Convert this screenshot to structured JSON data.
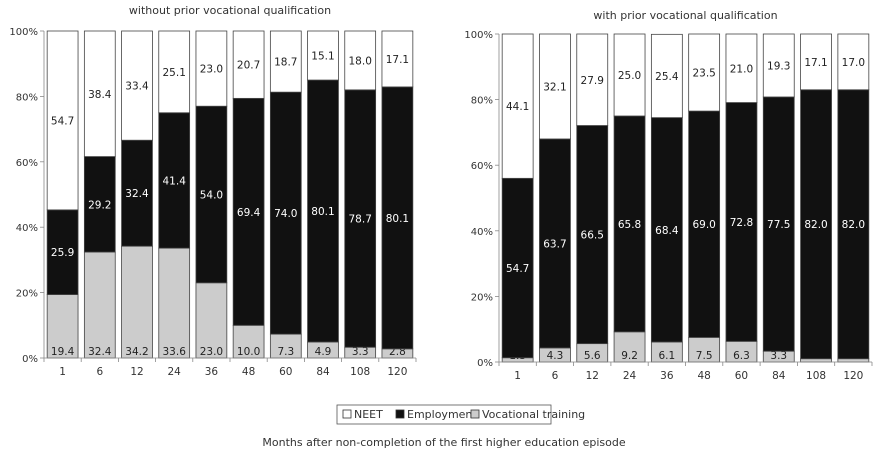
{
  "figure": {
    "xlabel": "Months after non-completion of the first higher education episode"
  },
  "legend": {
    "position": "bottom-center",
    "items": [
      {
        "name": "NEET",
        "color": "#ffffff"
      },
      {
        "name": "Employment",
        "color": "#111111"
      },
      {
        "name": "Vocational training",
        "color": "#cccccc"
      }
    ]
  },
  "chart_data": [
    {
      "type": "bar",
      "stacked": true,
      "title": "without prior vocational qualification",
      "categories": [
        "1",
        "6",
        "12",
        "24",
        "36",
        "48",
        "60",
        "84",
        "108",
        "120"
      ],
      "ylim": [
        0,
        100
      ],
      "yticks": [
        "0%",
        "20%",
        "40%",
        "60%",
        "80%",
        "100%"
      ],
      "series": [
        {
          "name": "Vocational training",
          "values": [
            19.4,
            32.4,
            34.2,
            33.6,
            23.0,
            10.0,
            7.3,
            4.9,
            3.3,
            2.8
          ]
        },
        {
          "name": "Employment",
          "values": [
            25.9,
            29.2,
            32.4,
            41.4,
            54.0,
            69.4,
            74.0,
            80.1,
            78.7,
            80.1
          ]
        },
        {
          "name": "NEET",
          "values": [
            54.7,
            38.4,
            33.4,
            25.1,
            23.0,
            20.7,
            18.7,
            15.1,
            18.0,
            17.1
          ]
        }
      ],
      "labels": {
        "Vocational training": [
          "19.4",
          "32.4",
          "34.2",
          "33.6",
          "23.0",
          "10.0",
          "7.3",
          "4.9",
          "3.3",
          "2.8"
        ],
        "Employment": [
          "25.9",
          "29.2",
          "32.4",
          "41.4",
          "54.0",
          "69.4",
          "74.0",
          "80.1",
          "78.7",
          "80.1"
        ],
        "NEET": [
          "54.7",
          "38.4",
          "33.4",
          "25.1",
          "23.0",
          "20.7",
          "18.7",
          "15.1",
          "18.0",
          "17.1"
        ]
      }
    },
    {
      "type": "bar",
      "stacked": true,
      "title": "with prior vocational qualification",
      "categories": [
        "1",
        "6",
        "12",
        "24",
        "36",
        "48",
        "60",
        "84",
        "108",
        "120"
      ],
      "ylim": [
        0,
        100
      ],
      "yticks": [
        "0%",
        "20%",
        "40%",
        "60%",
        "80%",
        "100%"
      ],
      "series": [
        {
          "name": "Vocational training",
          "values": [
            1.3,
            4.3,
            5.6,
            9.2,
            6.1,
            7.5,
            6.3,
            3.3,
            1.0,
            1.0
          ]
        },
        {
          "name": "Employment",
          "values": [
            54.7,
            63.7,
            66.5,
            65.8,
            68.4,
            69.0,
            72.8,
            77.5,
            82.0,
            82.0
          ]
        },
        {
          "name": "NEET",
          "values": [
            44.1,
            32.1,
            27.9,
            25.0,
            25.4,
            23.5,
            21.0,
            19.3,
            17.1,
            17.0
          ]
        }
      ],
      "labels": {
        "Vocational training": [
          "1.3",
          "4.3",
          "5.6",
          "9.2",
          "6.1",
          "7.5",
          "6.3",
          "3.3",
          "1.0",
          "1.0"
        ],
        "Employment": [
          "54.7",
          "63.7",
          "66.5",
          "65.8",
          "68.4",
          "69.0",
          "72.8",
          "77.5",
          "82.0",
          "82.0"
        ],
        "NEET": [
          "44.1",
          "32.1",
          "27.9",
          "25.0",
          "25.4",
          "23.5",
          "21.0",
          "19.3",
          "17.1",
          "17.0"
        ]
      }
    }
  ]
}
